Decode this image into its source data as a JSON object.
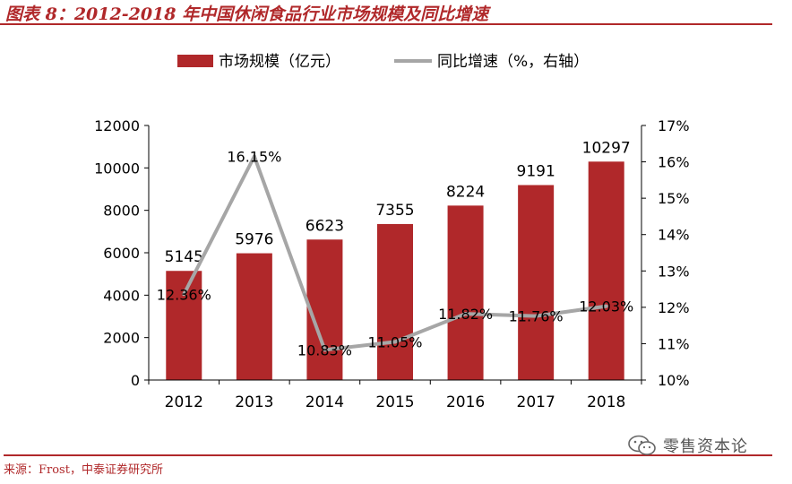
{
  "title": "图表 8：2012-2018 年中国休闲食品行业市场规模及同比增速",
  "source": "来源：Frost，中泰证券研究所",
  "watermark": "零售资本论",
  "colors": {
    "bar": "#b0282a",
    "line": "#a6a6a6",
    "accent": "#b0282a",
    "axis": "#000000"
  },
  "chart_data": {
    "type": "bar",
    "categories": [
      "2012",
      "2013",
      "2014",
      "2015",
      "2016",
      "2017",
      "2018"
    ],
    "series": [
      {
        "name": "市场规模（亿元）",
        "type": "bar",
        "axis": "left",
        "values": [
          5145,
          5976,
          6623,
          7355,
          8224,
          9191,
          10297
        ],
        "labels": [
          "5145",
          "5976",
          "6623",
          "7355",
          "8224",
          "9191",
          "10297"
        ]
      },
      {
        "name": "同比增速（%，右轴）",
        "type": "line",
        "axis": "right",
        "values": [
          12.36,
          16.15,
          10.83,
          11.05,
          11.82,
          11.76,
          12.03
        ],
        "labels": [
          "12.36%",
          "16.15%",
          "10.83%",
          "11.05%",
          "11.82%",
          "11.76%",
          "12.03%"
        ]
      }
    ],
    "ylim": [
      0,
      12000
    ],
    "yticks": [
      "0",
      "2000",
      "4000",
      "6000",
      "8000",
      "10000",
      "12000"
    ],
    "y2lim": [
      10,
      17
    ],
    "y2ticks": [
      "10%",
      "11%",
      "12%",
      "13%",
      "14%",
      "15%",
      "16%",
      "17%"
    ],
    "legend": "top",
    "grid": false
  }
}
